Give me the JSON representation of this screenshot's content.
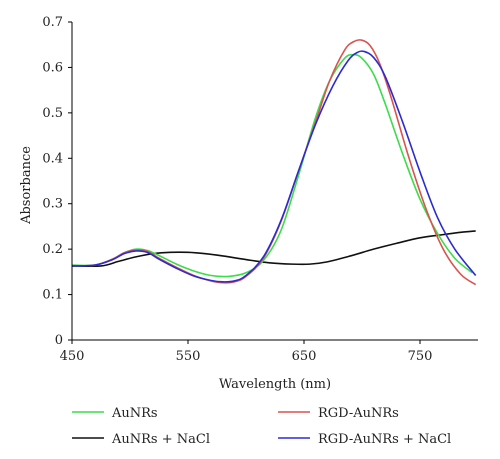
{
  "chart_data": {
    "type": "line",
    "title": "",
    "xlabel": "Wavelength (nm)",
    "ylabel": "Absorbance",
    "xlim": [
      450,
      800
    ],
    "ylim": [
      0,
      0.7
    ],
    "x_ticks": [
      "450",
      "550",
      "650",
      "750"
    ],
    "y_ticks": [
      "0",
      "0.1",
      "0.2",
      "0.3",
      "0.4",
      "0.5",
      "0.6",
      "0.7"
    ],
    "grid": false,
    "legend_position": "bottom",
    "series": [
      {
        "name": "AuNRs",
        "color": "#3ddc4a",
        "x": [
          450,
          470,
          485,
          495,
          505,
          515,
          525,
          540,
          555,
          570,
          585,
          600,
          615,
          630,
          645,
          660,
          672,
          685,
          693,
          700,
          710,
          720,
          735,
          750,
          765,
          780,
          795
        ],
        "y": [
          0.165,
          0.165,
          0.178,
          0.192,
          0.2,
          0.197,
          0.186,
          0.167,
          0.152,
          0.142,
          0.14,
          0.148,
          0.175,
          0.24,
          0.36,
          0.49,
          0.57,
          0.62,
          0.628,
          0.62,
          0.585,
          0.52,
          0.41,
          0.31,
          0.235,
          0.18,
          0.148
        ]
      },
      {
        "name": "AuNRs + NaCl",
        "color": "#111111",
        "x": [
          450,
          475,
          490,
          505,
          520,
          535,
          550,
          565,
          580,
          600,
          620,
          640,
          655,
          670,
          690,
          710,
          730,
          750,
          770,
          785,
          798
        ],
        "y": [
          0.163,
          0.163,
          0.173,
          0.183,
          0.19,
          0.193,
          0.193,
          0.19,
          0.185,
          0.177,
          0.17,
          0.167,
          0.167,
          0.172,
          0.185,
          0.2,
          0.213,
          0.225,
          0.232,
          0.237,
          0.24
        ]
      },
      {
        "name": "RGD-AuNRs",
        "color": "#d9534f",
        "x": [
          450,
          470,
          485,
          495,
          505,
          515,
          525,
          540,
          555,
          570,
          580,
          590,
          600,
          615,
          630,
          645,
          660,
          672,
          685,
          693,
          700,
          707,
          715,
          725,
          740,
          755,
          770,
          785,
          798
        ],
        "y": [
          0.163,
          0.165,
          0.178,
          0.192,
          0.198,
          0.195,
          0.18,
          0.16,
          0.142,
          0.13,
          0.126,
          0.128,
          0.14,
          0.18,
          0.26,
          0.37,
          0.48,
          0.57,
          0.638,
          0.657,
          0.66,
          0.648,
          0.61,
          0.535,
          0.405,
          0.29,
          0.2,
          0.145,
          0.122
        ]
      },
      {
        "name": "RGD-AuNRs + NaCl",
        "color": "#2b2bd6",
        "x": [
          450,
          470,
          485,
          495,
          505,
          515,
          525,
          540,
          555,
          570,
          580,
          590,
          600,
          615,
          630,
          645,
          660,
          675,
          688,
          696,
          702,
          710,
          720,
          735,
          750,
          765,
          780,
          798
        ],
        "y": [
          0.163,
          0.165,
          0.177,
          0.19,
          0.196,
          0.193,
          0.178,
          0.158,
          0.141,
          0.131,
          0.128,
          0.13,
          0.142,
          0.183,
          0.262,
          0.37,
          0.475,
          0.56,
          0.615,
          0.633,
          0.635,
          0.622,
          0.58,
          0.48,
          0.37,
          0.27,
          0.2,
          0.142
        ]
      }
    ]
  }
}
